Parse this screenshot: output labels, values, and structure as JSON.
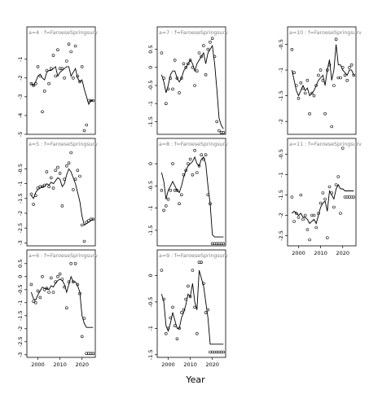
{
  "figure": {
    "xlabel": "Year",
    "strip_label_suffix": " : f=FaroeseSpringsurv"
  },
  "chart_data": [
    {
      "type": "scatter",
      "title": "a=4",
      "ylim": [
        -5,
        0.2
      ],
      "yticks": [
        -1,
        -2,
        -3,
        -4,
        -5
      ],
      "x": [
        1997,
        1998,
        1999,
        2000,
        2001,
        2002,
        2003,
        2004,
        2005,
        2006,
        2007,
        2008,
        2009,
        2010,
        2011,
        2012,
        2013,
        2014,
        2015,
        2016,
        2017,
        2018,
        2019,
        2020,
        2021,
        2022,
        2023,
        2024,
        2025
      ],
      "points": [
        -2.3,
        -2.4,
        -2.3,
        -1.4,
        -1.9,
        -3.8,
        -2.7,
        -1.6,
        -2.3,
        -1.5,
        -0.8,
        -1.9,
        -0.5,
        -1.5,
        -1.5,
        -2.0,
        -1.1,
        -0.2,
        -0.6,
        -2.0,
        -0.3,
        -1.9,
        -2.2,
        -1.4,
        -4.8,
        -4.5,
        -3.2,
        -3.2,
        -3.2
      ],
      "fit": [
        -2.3,
        -2.4,
        -2.2,
        -1.9,
        -1.8,
        -2.0,
        -2.1,
        -1.7,
        -1.6,
        -1.6,
        -1.5,
        -1.4,
        -1.9,
        -1.7,
        -1.6,
        -1.5,
        -1.4,
        -1.4,
        -1.9,
        -1.7,
        -1.5,
        -2.0,
        -2.2,
        -2.1,
        -2.6,
        -3.0,
        -3.4,
        -3.2,
        -3.2
      ]
    },
    {
      "type": "scatter",
      "title": "a=7",
      "ylim": [
        -1.85,
        0.85
      ],
      "yticks": [
        0.5,
        0.0,
        -0.5,
        -1.0,
        -1.5
      ],
      "x": [
        1997,
        1998,
        1999,
        2000,
        2001,
        2002,
        2003,
        2004,
        2005,
        2006,
        2007,
        2008,
        2009,
        2010,
        2011,
        2012,
        2013,
        2014,
        2015,
        2016,
        2017,
        2018,
        2019,
        2020,
        2021,
        2022,
        2023,
        2024,
        2025
      ],
      "points": [
        0.4,
        -0.3,
        -1.0,
        -0.6,
        -0.3,
        -0.6,
        0.2,
        -0.3,
        -0.7,
        -0.3,
        0.1,
        0.0,
        0.1,
        0.2,
        0.0,
        -0.5,
        -0.1,
        0.4,
        0.3,
        0.6,
        -0.2,
        0.5,
        0.7,
        0.8,
        0.3,
        -1.5,
        -1.75,
        -1.8,
        -1.8
      ],
      "fit": [
        -0.2,
        -0.4,
        -0.7,
        -0.5,
        -0.2,
        -0.1,
        -0.1,
        -0.3,
        -0.4,
        -0.3,
        -0.1,
        0.0,
        0.1,
        0.2,
        0.1,
        -0.1,
        0.1,
        0.2,
        0.3,
        0.4,
        0.1,
        0.4,
        0.5,
        0.6,
        0.1,
        -0.6,
        -1.4,
        -1.6,
        -1.7
      ]
    },
    {
      "type": "scatter",
      "title": "a=10",
      "ylim": [
        -2.25,
        -0.35
      ],
      "yticks": [
        -0.5,
        -1.0,
        -1.5,
        -2.0
      ],
      "x": [
        1997,
        1998,
        1999,
        2000,
        2001,
        2002,
        2003,
        2004,
        2005,
        2006,
        2007,
        2008,
        2009,
        2010,
        2011,
        2012,
        2013,
        2014,
        2015,
        2016,
        2017,
        2018,
        2019,
        2020,
        2021,
        2022,
        2023,
        2024,
        2025
      ],
      "points": [
        -0.6,
        -1.05,
        -1.3,
        -1.55,
        -1.25,
        -1.35,
        -1.45,
        -1.2,
        -1.85,
        -1.45,
        -1.5,
        -1.3,
        -1.1,
        -1.0,
        -1.2,
        -1.85,
        -1.0,
        -0.9,
        -2.1,
        -1.3,
        -0.4,
        -1.15,
        -1.15,
        -0.95,
        -1.1,
        -1.2,
        -0.95,
        -0.9,
        -1.1
      ],
      "fit": [
        -1.0,
        -1.2,
        -1.4,
        -1.5,
        -1.4,
        -1.3,
        -1.4,
        -1.35,
        -1.5,
        -1.45,
        -1.4,
        -1.3,
        -1.2,
        -1.15,
        -1.1,
        -1.3,
        -1.0,
        -0.8,
        -1.2,
        -1.0,
        -0.5,
        -0.9,
        -0.9,
        -1.0,
        -1.05,
        -1.1,
        -1.0,
        -1.0,
        -1.1
      ]
    },
    {
      "type": "scatter",
      "title": "a=5",
      "ylim": [
        -3.1,
        0.2
      ],
      "yticks": [
        -0.5,
        -1.0,
        -1.5,
        -2.0,
        -2.5,
        -3.0
      ],
      "x": [
        1997,
        1998,
        1999,
        2000,
        2001,
        2002,
        2003,
        2004,
        2005,
        2006,
        2007,
        2008,
        2009,
        2010,
        2011,
        2012,
        2013,
        2014,
        2015,
        2016,
        2017,
        2018,
        2019,
        2020,
        2021,
        2022,
        2023,
        2024,
        2025
      ],
      "points": [
        -1.35,
        -1.7,
        -1.4,
        -1.15,
        -1.1,
        -1.1,
        -1.05,
        -0.6,
        -1.1,
        -0.8,
        -1.15,
        -0.55,
        -0.45,
        -0.65,
        -1.75,
        -0.85,
        -0.4,
        -0.3,
        0.05,
        -1.2,
        -0.85,
        -0.55,
        -0.75,
        -2.4,
        -2.95,
        -2.3,
        -2.25,
        -2.2,
        -2.2
      ],
      "fit": [
        -1.4,
        -1.5,
        -1.3,
        -1.2,
        -1.15,
        -1.1,
        -1.1,
        -1.0,
        -1.05,
        -0.95,
        -1.0,
        -0.9,
        -0.8,
        -0.85,
        -1.1,
        -1.0,
        -0.7,
        -0.5,
        -0.6,
        -0.8,
        -1.0,
        -1.3,
        -1.6,
        -2.1,
        -2.4,
        -2.35,
        -2.3,
        -2.25,
        -2.2
      ]
    },
    {
      "type": "scatter",
      "title": "a=8",
      "ylim": [
        -1.85,
        0.35
      ],
      "yticks": [
        0.0,
        -0.5,
        -1.0,
        -1.5
      ],
      "x": [
        1997,
        1998,
        1999,
        2000,
        2001,
        2002,
        2003,
        2004,
        2005,
        2006,
        2007,
        2008,
        2009,
        2010,
        2011,
        2012,
        2013,
        2014,
        2015,
        2016,
        2017,
        2018,
        2019,
        2020,
        2021,
        2022,
        2023,
        2024,
        2025
      ],
      "points": [
        -0.6,
        -1.05,
        -0.95,
        -0.8,
        -0.6,
        0.0,
        -0.6,
        -0.6,
        -0.9,
        -0.7,
        -0.25,
        -0.15,
        0.0,
        0.1,
        -0.25,
        0.3,
        -0.2,
        -0.05,
        0.2,
        0.1,
        0.2,
        -0.7,
        -0.9,
        -1.8,
        -1.8,
        -1.8,
        -1.8,
        -1.8,
        -1.8
      ],
      "fit": [
        -0.2,
        -0.4,
        -0.8,
        -0.6,
        -0.5,
        -0.4,
        -0.5,
        -0.6,
        -0.65,
        -0.5,
        -0.3,
        -0.15,
        -0.05,
        0.0,
        0.05,
        0.15,
        0.0,
        -0.05,
        0.1,
        0.15,
        0.0,
        -0.5,
        -0.9,
        -1.6,
        -1.65,
        -1.65,
        -1.65,
        -1.65,
        -1.65
      ]
    },
    {
      "type": "scatter",
      "title": "a=11",
      "ylim": [
        -2.75,
        -0.35
      ],
      "yticks": [
        -0.5,
        -1.0,
        -1.5,
        -2.0,
        -2.5
      ],
      "x": [
        1997,
        1998,
        1999,
        2000,
        2001,
        2002,
        2003,
        2004,
        2005,
        2006,
        2007,
        2008,
        2009,
        2010,
        2011,
        2012,
        2013,
        2014,
        2015,
        2016,
        2017,
        2018,
        2019,
        2020,
        2021,
        2022,
        2023,
        2024,
        2025
      ],
      "points": [
        -1.55,
        -2.15,
        -1.95,
        -2.05,
        -1.5,
        -2.1,
        -2.0,
        -2.35,
        -2.6,
        -2.0,
        -2.0,
        -2.3,
        -1.95,
        -1.7,
        -1.45,
        -1.6,
        -2.55,
        -1.3,
        -1.45,
        -1.8,
        -1.25,
        -1.05,
        -1.95,
        -0.35,
        -1.55,
        -1.55,
        -1.55,
        -1.55,
        -1.55
      ],
      "fit": [
        -1.95,
        -1.9,
        -1.95,
        -2.0,
        -1.95,
        -2.05,
        -2.05,
        -2.1,
        -2.2,
        -2.15,
        -2.1,
        -2.2,
        -2.0,
        -1.8,
        -1.7,
        -1.65,
        -1.9,
        -1.4,
        -1.5,
        -1.6,
        -1.35,
        -1.25,
        -1.35,
        -1.35,
        -1.4,
        -1.4,
        -1.4,
        -1.4,
        -1.4
      ]
    },
    {
      "type": "scatter",
      "title": "a=6",
      "ylim": [
        -3.1,
        0.65
      ],
      "yticks": [
        0.5,
        0.0,
        -0.5,
        -1.0,
        -1.5,
        -2.0,
        -2.5,
        -3.0
      ],
      "x": [
        1997,
        1998,
        1999,
        2000,
        2001,
        2002,
        2003,
        2004,
        2005,
        2006,
        2007,
        2008,
        2009,
        2010,
        2011,
        2012,
        2013,
        2014,
        2015,
        2016,
        2017,
        2018,
        2019,
        2020,
        2021,
        2022,
        2023,
        2024,
        2025
      ],
      "points": [
        -0.3,
        -0.95,
        -1.0,
        -0.55,
        -0.8,
        0.0,
        -0.5,
        -0.45,
        -0.6,
        -0.05,
        -0.6,
        -0.2,
        0.0,
        0.1,
        -0.1,
        -0.4,
        -1.2,
        -0.2,
        0.5,
        -0.2,
        0.5,
        -0.3,
        -0.65,
        -2.3,
        -1.6,
        -2.95,
        -2.95,
        -2.95,
        -2.95
      ],
      "fit": [
        -0.6,
        -0.85,
        -0.9,
        -0.7,
        -0.55,
        -0.4,
        -0.45,
        -0.45,
        -0.5,
        -0.35,
        -0.4,
        -0.25,
        -0.15,
        -0.1,
        -0.15,
        -0.3,
        -0.6,
        -0.3,
        0.0,
        -0.2,
        -0.2,
        -0.35,
        -0.6,
        -1.5,
        -1.8,
        -1.95,
        -1.95,
        -1.95,
        -1.95
      ]
    },
    {
      "type": "scatter",
      "title": "a=9",
      "ylim": [
        -1.55,
        0.3
      ],
      "yticks": [
        0.0,
        -0.5,
        -1.0,
        -1.5
      ],
      "x": [
        1997,
        1998,
        1999,
        2000,
        2001,
        2002,
        2003,
        2004,
        2005,
        2006,
        2007,
        2008,
        2009,
        2010,
        2011,
        2012,
        2013,
        2014,
        2015,
        2016,
        2017,
        2018,
        2019,
        2020,
        2021,
        2022,
        2023,
        2024,
        2025
      ],
      "points": [
        0.1,
        -0.45,
        -1.1,
        -1.0,
        -0.8,
        -0.6,
        -0.95,
        -1.2,
        -1.0,
        -0.7,
        -0.65,
        -0.45,
        -0.2,
        -0.4,
        0.1,
        -0.6,
        -1.1,
        0.25,
        0.25,
        -0.15,
        -0.7,
        -0.65,
        -1.45,
        -1.45,
        -1.45,
        -1.45,
        -1.45,
        -1.45,
        -1.45
      ],
      "fit": [
        -0.35,
        -0.5,
        -0.95,
        -1.05,
        -0.9,
        -0.7,
        -0.85,
        -1.0,
        -1.0,
        -0.8,
        -0.7,
        -0.55,
        -0.35,
        -0.4,
        -0.15,
        -0.5,
        -0.65,
        0.1,
        -0.05,
        -0.2,
        -0.5,
        -0.8,
        -1.3,
        -1.3,
        -1.3,
        -1.3,
        -1.3,
        -1.3,
        -1.3
      ]
    }
  ],
  "xaxis": {
    "range": [
      1995,
      2026
    ],
    "ticks": [
      2000,
      2010,
      2020
    ]
  },
  "colors": {
    "ink": "#000000",
    "strip_text": "#808080",
    "background": "#ffffff"
  }
}
